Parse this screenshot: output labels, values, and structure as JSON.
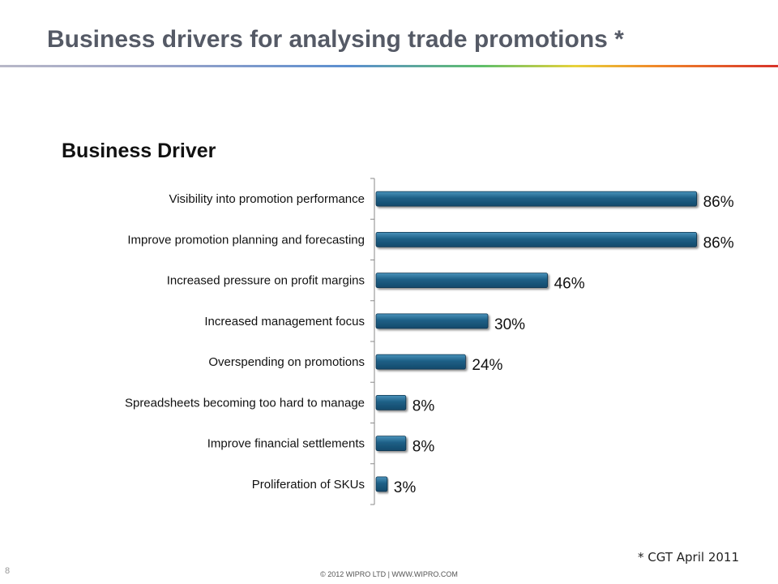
{
  "slide": {
    "title": "Business drivers for analysing trade promotions *",
    "footnote": "* CGT April 2011",
    "page_number": "8",
    "copyright": "© 2012 WIPRO LTD | WWW.WIPRO.COM"
  },
  "colors": {
    "bar": "#1d5f86",
    "bar_top": "#3d86ad",
    "bar_shadow": "#0d3550",
    "title": "#555a66"
  },
  "chart_data": {
    "type": "bar",
    "orientation": "horizontal",
    "title": "Business Driver",
    "categories": [
      "Visibility into promotion performance",
      "Improve promotion planning and forecasting",
      "Increased pressure on profit margins",
      "Increased management focus",
      "Overspending on promotions",
      "Spreadsheets becoming too hard to manage",
      "Improve financial settlements",
      "Proliferation of SKUs"
    ],
    "values": [
      86,
      86,
      46,
      30,
      24,
      8,
      8,
      3
    ],
    "value_labels": [
      "86%",
      "86%",
      "46%",
      "30%",
      "24%",
      "8%",
      "8%",
      "3%"
    ],
    "xlim": [
      0,
      100
    ],
    "unit": "%",
    "grid": false,
    "legend": "none"
  }
}
